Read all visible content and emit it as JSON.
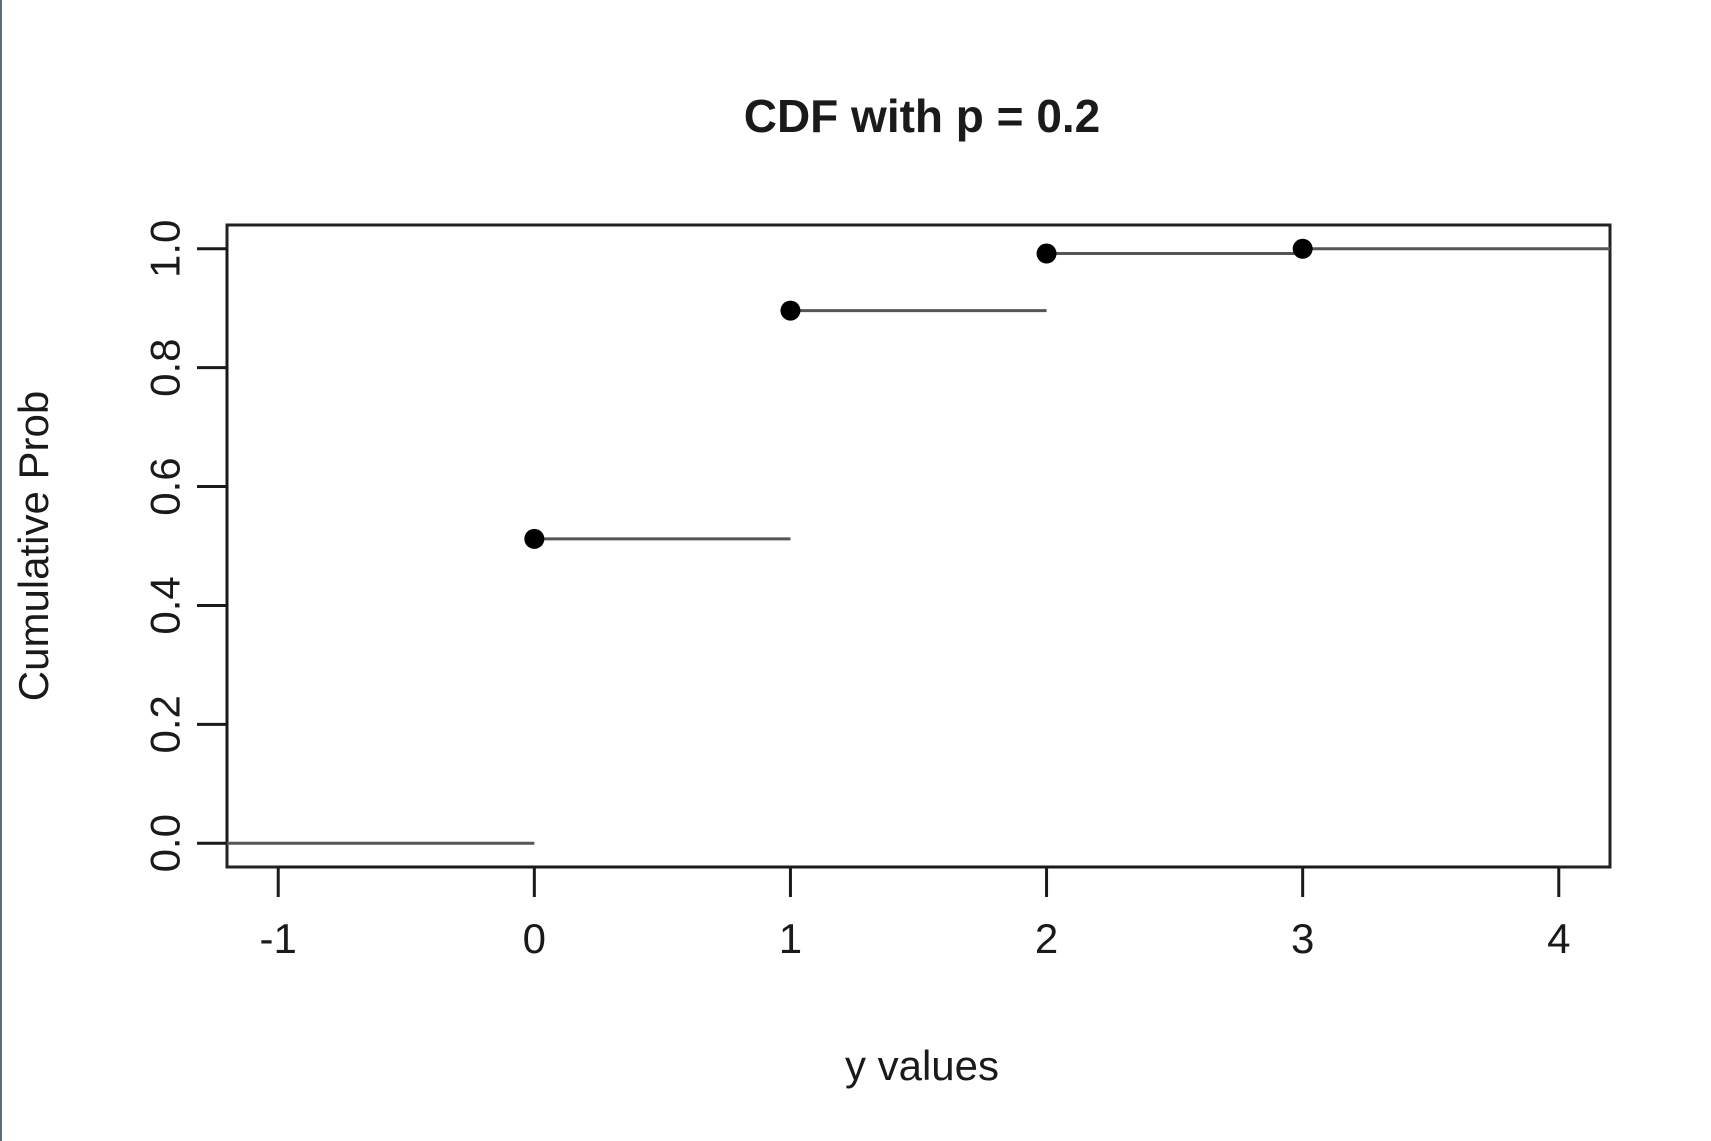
{
  "chart_data": {
    "type": "step",
    "title": "CDF with p = 0.2",
    "xlabel": "y values",
    "ylabel": "Cumulative Prob",
    "xlim": [
      -1.2,
      4.2
    ],
    "ylim": [
      -0.04,
      1.04
    ],
    "xticks": [
      -1,
      0,
      1,
      2,
      3,
      4
    ],
    "xtick_labels": [
      "-1",
      "0",
      "1",
      "2",
      "3",
      "4"
    ],
    "yticks": [
      0.0,
      0.2,
      0.4,
      0.6,
      0.8,
      1.0
    ],
    "ytick_labels": [
      "0.0",
      "0.2",
      "0.4",
      "0.6",
      "0.8",
      "1.0"
    ],
    "steps": [
      {
        "x_start": -1.2,
        "x_end": 0,
        "y": 0.0
      },
      {
        "x_start": 0,
        "x_end": 1,
        "y": 0.512
      },
      {
        "x_start": 1,
        "x_end": 2,
        "y": 0.896
      },
      {
        "x_start": 2,
        "x_end": 3,
        "y": 0.992
      },
      {
        "x_start": 3,
        "x_end": 4.2,
        "y": 1.0
      }
    ],
    "points": [
      {
        "x": 0,
        "y": 0.512
      },
      {
        "x": 1,
        "y": 0.896
      },
      {
        "x": 2,
        "y": 0.992
      },
      {
        "x": 3,
        "y": 1.0
      }
    ],
    "grid": false,
    "legend": "none",
    "colors": {
      "axis": "#1a1a1a",
      "points": "#000000",
      "steps": "#555555",
      "text": "#1a1a1a",
      "frame": "#5a6b7d"
    }
  }
}
